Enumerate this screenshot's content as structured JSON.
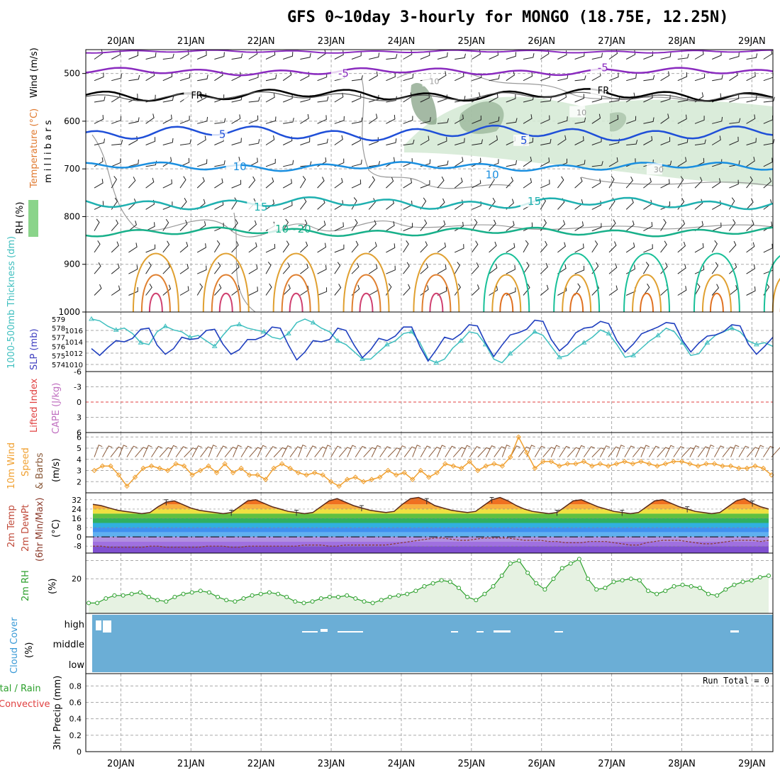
{
  "title": "GFS 0~10day 3-hourly for MONGO (18.75E, 12.25N)",
  "date_labels": [
    "20JAN",
    "21JAN",
    "22JAN",
    "23JAN",
    "24JAN",
    "25JAN",
    "26JAN",
    "27JAN",
    "28JAN",
    "29JAN"
  ],
  "colors": {
    "frame": "#000000",
    "grid": "#aaaaaa",
    "cloud": "#6baed6",
    "rh_line": "#2ca02c",
    "wind_speed": "#f0a030",
    "slp": "#1f3fbf",
    "thickness": "#3fbfbf"
  },
  "chart_data": [
    {
      "type": "contour",
      "panel": "upper-air",
      "ylabel_parts": [
        "Wind (m/s)",
        "Temperature (°C)",
        "RH (%)"
      ],
      "ylabel_unit": "m i l l i b a r s",
      "y_ticks": [
        "500",
        "600",
        "700",
        "800",
        "900",
        "1000"
      ],
      "ylim": [
        450,
        1000
      ],
      "isotherm_labels": [
        {
          "text": "-5",
          "level": 500,
          "day": 23.1
        },
        {
          "text": "-5",
          "level": 488,
          "day": 26.8
        },
        {
          "text": "FR",
          "level": 545,
          "day": 21.0
        },
        {
          "text": "FR",
          "level": 535,
          "day": 26.8
        },
        {
          "text": "5",
          "level": 628,
          "day": 21.4
        },
        {
          "text": "5",
          "level": 640,
          "day": 25.7
        },
        {
          "text": "10",
          "level": 695,
          "day": 21.6
        },
        {
          "text": "10",
          "level": 712,
          "day": 25.2
        },
        {
          "text": "15",
          "level": 780,
          "day": 21.9
        },
        {
          "text": "15",
          "level": 768,
          "day": 25.8
        },
        {
          "text": "10~20",
          "level": 826,
          "day": 22.2
        },
        {
          "text": "10",
          "level": 515,
          "day": 24.4
        },
        {
          "text": "10",
          "level": 580,
          "day": 26.5
        },
        {
          "text": "30",
          "level": 700,
          "day": 27.6
        }
      ]
    },
    {
      "type": "line",
      "panel": "slp-thickness",
      "ylabel_left": "1000-500mb Thickness (dm)",
      "ylabel_right": "SLP (mb)",
      "y_ticks_left": [
        "579",
        "578",
        "577",
        "576",
        "575",
        "574"
      ],
      "y_ticks_right": [
        "1016",
        "1014",
        "1012",
        "1010"
      ],
      "series": [
        {
          "role": "SLP",
          "axis": "right",
          "ylim": [
            1009.5,
            1018.5
          ],
          "values": [
            1012.8,
            1011.6,
            1013.0,
            1014.2,
            1014.0,
            1014.6,
            1016.2,
            1016.4,
            1013.4,
            1011.8,
            1012.8,
            1014.8,
            1014.4,
            1014.6,
            1016.0,
            1016.2,
            1013.6,
            1011.8,
            1012.6,
            1014.4,
            1014.4,
            1015.0,
            1016.6,
            1016.4,
            1013.4,
            1010.8,
            1012.2,
            1014.2,
            1014.0,
            1014.4,
            1016.4,
            1016.0,
            1013.4,
            1011.2,
            1012.6,
            1014.6,
            1014.2,
            1015.0,
            1016.6,
            1016.6,
            1013.2,
            1010.6,
            1012.6,
            1014.8,
            1014.4,
            1015.4,
            1017.0,
            1016.8,
            1013.8,
            1011.4,
            1013.4,
            1015.2,
            1015.6,
            1016.2,
            1017.8,
            1017.6,
            1014.4,
            1012.4,
            1013.6,
            1015.6,
            1016.4,
            1016.6,
            1017.6,
            1017.2,
            1014.2,
            1012.2,
            1013.6,
            1015.4,
            1016.0,
            1016.6,
            1017.4,
            1017.2,
            1014.2,
            1012.2,
            1013.8,
            1015.0,
            1015.2,
            1015.8,
            1017.0,
            1016.8,
            1013.6,
            1011.8,
            1013.2,
            1014.8
          ]
        },
        {
          "role": "Thickness",
          "axis": "left",
          "ylim": [
            573.7,
            579.3
          ],
          "values": [
            579.0,
            578.8,
            578.2,
            577.8,
            578.0,
            577.4,
            576.4,
            576.2,
            577.6,
            578.2,
            577.8,
            577.6,
            577.0,
            577.2,
            576.6,
            576.0,
            577.2,
            578.2,
            578.4,
            578.0,
            577.8,
            577.6,
            577.0,
            576.8,
            577.4,
            578.6,
            579.0,
            578.6,
            578.0,
            577.6,
            576.6,
            576.2,
            575.4,
            574.6,
            574.6,
            575.4,
            576.2,
            576.6,
            577.4,
            577.6,
            576.4,
            574.6,
            574.2,
            574.6,
            575.8,
            576.6,
            577.6,
            577.4,
            576.2,
            574.6,
            574.2,
            575.2,
            576.0,
            576.8,
            577.6,
            577.2,
            576.0,
            574.8,
            575.0,
            575.8,
            576.4,
            577.0,
            577.8,
            577.4,
            576.2,
            574.8,
            575.0,
            575.8,
            576.6,
            577.2,
            578.0,
            577.6,
            576.4,
            575.0,
            575.2,
            576.4,
            577.2,
            577.6,
            578.0,
            577.6,
            576.6,
            576.2,
            576.4,
            576.0
          ]
        }
      ]
    },
    {
      "type": "line",
      "panel": "instability",
      "ylabel_parts": [
        "Lifted Index",
        "CAPE (J/kg)"
      ],
      "y_ticks": [
        "-6",
        "-3",
        "0",
        "3",
        "6"
      ],
      "ylim": [
        6,
        -6
      ]
    },
    {
      "type": "line",
      "panel": "10m-wind",
      "ylabel_parts": [
        "10m Wind",
        "Speed",
        "& Barbs",
        "(m/s)"
      ],
      "y_ticks": [
        "2",
        "3",
        "4",
        "5",
        "6"
      ],
      "ylim": [
        1,
        6.4
      ],
      "values": [
        3.0,
        3.4,
        3.4,
        2.6,
        1.6,
        2.4,
        3.2,
        3.4,
        3.2,
        3.0,
        3.6,
        3.4,
        2.6,
        3.0,
        3.4,
        2.8,
        3.6,
        2.8,
        3.2,
        2.6,
        2.6,
        2.2,
        3.2,
        3.6,
        3.2,
        2.8,
        2.6,
        2.8,
        2.6,
        2.0,
        1.6,
        2.2,
        2.4,
        2.0,
        2.2,
        2.4,
        3.0,
        2.6,
        2.8,
        2.2,
        3.0,
        2.4,
        2.8,
        3.6,
        3.4,
        3.2,
        3.8,
        3.0,
        3.4,
        3.6,
        3.4,
        4.2,
        6.0,
        4.6,
        3.2,
        3.8,
        3.8,
        3.4,
        3.6,
        3.6,
        3.8,
        3.4,
        3.6,
        3.4,
        3.6,
        3.8,
        3.6,
        3.8,
        3.6,
        3.4,
        3.6,
        3.8,
        3.8,
        3.6,
        3.4,
        3.6,
        3.6,
        3.4,
        3.4,
        3.2,
        3.2,
        3.4,
        3.2,
        2.6
      ]
    },
    {
      "type": "area",
      "panel": "2m-temperature",
      "ylabel_parts": [
        "2m Temp",
        "2m DewPt",
        "(6hr Min/Max)",
        "(°C)"
      ],
      "y_ticks": [
        "32",
        "24",
        "16",
        "8",
        "0",
        "-8"
      ],
      "ylim": [
        -14,
        38
      ],
      "temp": [
        28,
        27,
        25,
        23,
        22,
        21,
        20,
        21,
        26,
        30,
        31,
        28,
        25,
        23,
        22,
        21,
        20,
        21,
        26,
        31,
        32,
        29,
        26,
        24,
        22,
        21,
        20,
        21,
        26,
        31,
        33,
        30,
        27,
        25,
        23,
        22,
        21,
        22,
        28,
        33,
        34,
        31,
        27,
        25,
        23,
        22,
        21,
        22,
        27,
        32,
        34,
        31,
        27,
        24,
        22,
        21,
        20,
        21,
        26,
        31,
        32,
        29,
        26,
        24,
        22,
        21,
        20,
        21,
        26,
        31,
        32,
        29,
        26,
        24,
        22,
        21,
        20,
        21,
        26,
        31,
        33,
        29,
        26,
        24
      ],
      "dewpt": [
        -8,
        -8,
        -9,
        -9,
        -9,
        -9,
        -9,
        -8,
        -8,
        -9,
        -9,
        -9,
        -9,
        -9,
        -8,
        -8,
        -8,
        -9,
        -9,
        -8,
        -8,
        -8,
        -8,
        -8,
        -8,
        -8,
        -7,
        -7,
        -7,
        -8,
        -8,
        -7,
        -7,
        -7,
        -7,
        -7,
        -7,
        -6,
        -5,
        -4,
        -3,
        -2,
        -1,
        -1,
        -2,
        -3,
        -3,
        -2,
        -1,
        -1,
        -1,
        -1,
        -2,
        -3,
        -3,
        -3,
        -4,
        -4,
        -5,
        -5,
        -5,
        -4,
        -4,
        -4,
        -5,
        -6,
        -7,
        -7,
        -5,
        -4,
        -3,
        -3,
        -3,
        -4,
        -5,
        -6,
        -6,
        -5,
        -4,
        -3,
        -3,
        -3,
        -4,
        -3
      ]
    },
    {
      "type": "area",
      "panel": "2m-rh",
      "ylabel_parts": [
        "2m RH",
        "(%)"
      ],
      "y_ticks": [
        "20"
      ],
      "ylim": [
        0,
        36
      ],
      "values": [
        4,
        4,
        7,
        9,
        9,
        10,
        11,
        8,
        6,
        5,
        8,
        10,
        11,
        12,
        11,
        8,
        6,
        5,
        7,
        9,
        10,
        11,
        10,
        8,
        5,
        4,
        5,
        7,
        8,
        8,
        9,
        7,
        5,
        4,
        6,
        8,
        9,
        10,
        12,
        15,
        17,
        19,
        18,
        14,
        8,
        6,
        10,
        15,
        22,
        30,
        32,
        24,
        17,
        13,
        20,
        27,
        30,
        33,
        20,
        13,
        14,
        18,
        19,
        20,
        19,
        12,
        10,
        12,
        15,
        16,
        15,
        14,
        10,
        9,
        13,
        16,
        18,
        19,
        21,
        22
      ],
      "x_step_hours": 3.4
    },
    {
      "type": "heatmap",
      "panel": "cloud-cover",
      "ylabel_parts": [
        "Cloud Cover",
        "(%)"
      ],
      "y_ticks": [
        "high",
        "middle",
        "low"
      ]
    },
    {
      "type": "bar",
      "panel": "precipitation",
      "ylabel_parts": [
        "Total / Rain",
        "Convective",
        "3hr Precip (mm)"
      ],
      "y_ticks": [
        "0",
        "0.2",
        "0.4",
        "0.6",
        "0.8"
      ],
      "ylim": [
        0,
        0.95
      ],
      "run_total": "Run Total = 0",
      "values": []
    }
  ]
}
